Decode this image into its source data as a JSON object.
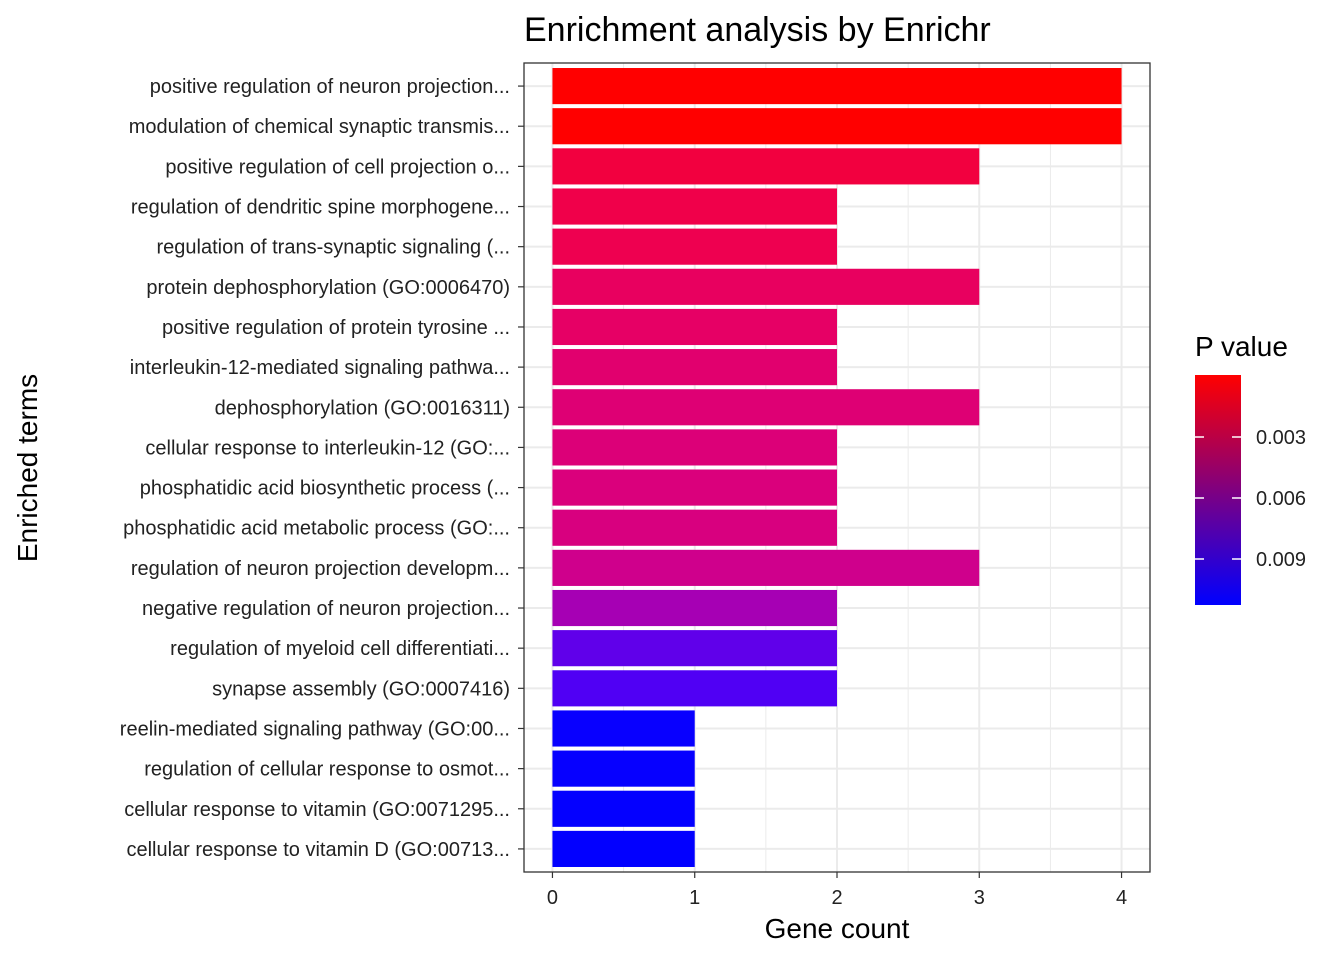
{
  "chart_data": {
    "type": "bar",
    "orientation": "horizontal",
    "title": "Enrichment analysis by Enrichr",
    "xlabel": "Gene count",
    "ylabel": "Enriched terms",
    "xlim": [
      -0.2,
      4.2
    ],
    "xticks": [
      0,
      1,
      2,
      3,
      4
    ],
    "grid": true,
    "legend_position": "right",
    "categories": [
      "positive regulation of neuron projection...",
      "modulation of chemical synaptic transmis...",
      "positive regulation of cell projection o...",
      "regulation of dendritic spine morphogene...",
      "regulation of trans-synaptic signaling (...",
      "protein dephosphorylation (GO:0006470)",
      "positive regulation of protein tyrosine ...",
      "interleukin-12-mediated signaling pathwa...",
      "dephosphorylation (GO:0016311)",
      "cellular response to interleukin-12 (GO:...",
      "phosphatidic acid biosynthetic process (...",
      "phosphatidic acid metabolic process (GO:...",
      "regulation of neuron projection developm...",
      "negative regulation of neuron projection...",
      "regulation of myeloid cell differentiati...",
      "synapse assembly (GO:0007416)",
      "reelin-mediated signaling pathway (GO:00...",
      "regulation of cellular response to osmot...",
      "cellular response to vitamin (GO:0071295...",
      "cellular response to vitamin D (GO:00713..."
    ],
    "values": [
      4,
      4,
      3,
      2,
      2,
      3,
      2,
      2,
      3,
      2,
      2,
      2,
      3,
      2,
      2,
      2,
      1,
      1,
      1,
      1
    ],
    "colors": [
      "#FF0000",
      "#FF0000",
      "#F2003F",
      "#F0004A",
      "#EE0050",
      "#E8005F",
      "#E60065",
      "#E1006E",
      "#DE0074",
      "#DC0078",
      "#DA007C",
      "#D8007F",
      "#CF008C",
      "#A600B4",
      "#6000EA",
      "#5000F4",
      "#0800FF",
      "#0600FF",
      "#0400FF",
      "#0200FF"
    ],
    "legend": {
      "title": "P value",
      "ticks": [
        "0.003",
        "0.006",
        "0.009"
      ],
      "gradient_top": "#FF0000",
      "gradient_bottom": "#0000FF"
    }
  }
}
